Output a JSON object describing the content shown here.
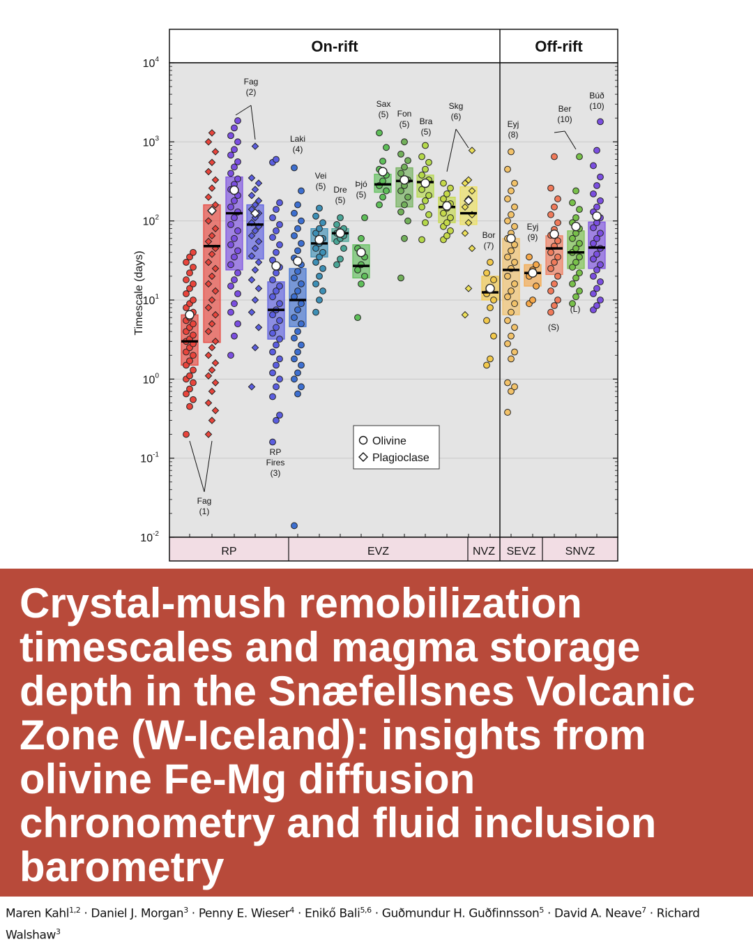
{
  "title": "Crystal-mush remobilization timescales and magma storage depth in the Snæfellsnes Volcanic Zone (W-Iceland): insights from olivine Fe-Mg diffusion chronometry and fluid inclusion barometry",
  "authors": [
    {
      "name": "Maren Kahl",
      "aff": "1,2"
    },
    {
      "name": "Daniel J. Morgan",
      "aff": "3"
    },
    {
      "name": "Penny E. Wieser",
      "aff": "4"
    },
    {
      "name": "Enikő Bali",
      "aff": "5,6"
    },
    {
      "name": "Guðmundur H. Guðfinnsson",
      "aff": "5"
    },
    {
      "name": "David A. Neave",
      "aff": "7"
    },
    {
      "name": "Richard Walshaw",
      "aff": "3"
    }
  ],
  "author_separator": " · ",
  "chart_data": {
    "type": "scatter",
    "yscale": "log",
    "ylabel": "Timescale (days)",
    "ylim": [
      0.01,
      10000
    ],
    "yticks": [
      {
        "value": 0.01,
        "base": "10",
        "exp": "-2"
      },
      {
        "value": 0.1,
        "base": "10",
        "exp": "-1"
      },
      {
        "value": 1,
        "base": "10",
        "exp": "0"
      },
      {
        "value": 10,
        "base": "10",
        "exp": "1"
      },
      {
        "value": 100,
        "base": "10",
        "exp": "2"
      },
      {
        "value": 1000,
        "base": "10",
        "exp": "3"
      },
      {
        "value": 10000,
        "base": "10",
        "exp": "4"
      }
    ],
    "grid": true,
    "header_panels": [
      {
        "label": "On-rift",
        "from": 0,
        "to": 12
      },
      {
        "label": "Off-rift",
        "from": 12,
        "to": 17
      }
    ],
    "zones": [
      {
        "label": "RP",
        "from": 0,
        "to": 5
      },
      {
        "label": "EVZ",
        "from": 5,
        "to": 11
      },
      {
        "label": "NVZ",
        "from": 11,
        "to": 12
      },
      {
        "label": "SEVZ",
        "from": 12,
        "to": 14
      },
      {
        "label": "SNVZ",
        "from": 14,
        "to": 17
      }
    ],
    "legend": {
      "position": "center",
      "items": [
        {
          "marker": "circle",
          "label": "Olivine"
        },
        {
          "marker": "diamond",
          "label": "Plagioclase"
        }
      ]
    },
    "colors": {
      "red": "#e8453c",
      "blue": "#5b5ee0",
      "purple": "#7b4fe0",
      "teal": "#3d8fb5",
      "green": "#5fbf5a",
      "olive": "#72b05a",
      "lime": "#b5d94a",
      "yellow": "#f2c94c",
      "orange": "#f5a84a",
      "salmon": "#f07a5a",
      "plot_bg": "#e4e4e4",
      "zone_bg": "#f2dde4"
    },
    "series": [
      {
        "x": 1,
        "marker": "circle",
        "color": "#e8453c",
        "q1": 1.5,
        "median": 3.0,
        "q3": 6.5,
        "mean": 6.5,
        "values": [
          0.2,
          0.45,
          0.55,
          0.65,
          0.75,
          0.9,
          1.0,
          1.1,
          1.3,
          1.5,
          1.7,
          2.0,
          2.2,
          2.5,
          2.8,
          3.0,
          3.2,
          3.6,
          4.0,
          4.5,
          5.0,
          5.5,
          6.0,
          7.0,
          8.0,
          9.0,
          10,
          12,
          14,
          16,
          18,
          22,
          26,
          30,
          35,
          40
        ]
      },
      {
        "x": 2,
        "marker": "diamond",
        "color": "#e8453c",
        "q1": 2.9,
        "median": 48,
        "q3": 160,
        "mean": 135,
        "values": [
          0.2,
          0.3,
          0.4,
          0.5,
          0.7,
          0.9,
          1.1,
          1.3,
          1.6,
          2.0,
          2.5,
          3.0,
          4.0,
          5.0,
          6.5,
          8,
          10,
          13,
          16,
          20,
          25,
          30,
          38,
          45,
          55,
          65,
          80,
          100,
          130,
          160,
          200,
          260,
          330,
          420,
          550,
          750,
          1000,
          1300
        ]
      },
      {
        "x": 3,
        "marker": "circle",
        "color": "#7b4fe0",
        "q1": 24,
        "median": 125,
        "q3": 360,
        "mean": 245,
        "values": [
          2.0,
          3.5,
          5,
          7,
          9,
          12,
          15,
          18,
          22,
          28,
          35,
          42,
          50,
          60,
          75,
          90,
          110,
          130,
          150,
          180,
          210,
          250,
          290,
          340,
          400,
          480,
          560,
          680,
          800,
          1000,
          1200,
          1500,
          1850
        ]
      },
      {
        "x": 4,
        "marker": "diamond",
        "color": "#5b5ee0",
        "q1": 33,
        "median": 90,
        "q3": 160,
        "mean": 125,
        "values": [
          0.8,
          2.5,
          4.5,
          7,
          10,
          14,
          18,
          24,
          30,
          36,
          45,
          55,
          65,
          75,
          85,
          95,
          110,
          125,
          140,
          160,
          180,
          210,
          250,
          300,
          350,
          880
        ]
      },
      {
        "x": 5,
        "marker": "circle",
        "color": "#5b5ee0",
        "q1": 3.2,
        "median": 7.5,
        "q3": 17,
        "mean": 27,
        "values": [
          0.16,
          0.3,
          0.35,
          0.6,
          0.8,
          1.0,
          1.2,
          1.5,
          1.8,
          2.2,
          2.7,
          3.2,
          3.8,
          4.5,
          5.5,
          6.5,
          7.5,
          9,
          11,
          13,
          15,
          18,
          22,
          26,
          32,
          40,
          50,
          62,
          75,
          90,
          110,
          140,
          170,
          550,
          600
        ]
      },
      {
        "x": 6,
        "marker": "circle",
        "color": "#3d6fd0",
        "q1": 4.6,
        "median": 10,
        "q3": 25,
        "mean": 31,
        "values": [
          0.014,
          0.65,
          0.8,
          1.0,
          1.2,
          1.5,
          1.8,
          2.2,
          2.7,
          3.3,
          4,
          5,
          6,
          7.5,
          9,
          11,
          13,
          16,
          19,
          23,
          28,
          34,
          42,
          52,
          65,
          80,
          100,
          125,
          160,
          240,
          470
        ]
      },
      {
        "x": 7,
        "marker": "circle",
        "color": "#3d8fb5",
        "q1": 35,
        "median": 52,
        "q3": 80,
        "mean": 58,
        "values": [
          7,
          10,
          13,
          16,
          20,
          25,
          30,
          35,
          40,
          45,
          52,
          60,
          70,
          80,
          95,
          115,
          145
        ]
      },
      {
        "x": 8,
        "marker": "circle",
        "color": "#4aa596",
        "q1": 55,
        "median": 70,
        "q3": 80,
        "mean": 70,
        "values": [
          28,
          33,
          45,
          55,
          60,
          65,
          70,
          75,
          80,
          90,
          110
        ]
      },
      {
        "x": 9,
        "marker": "circle",
        "color": "#5fbf5a",
        "q1": 19,
        "median": 27,
        "q3": 50,
        "mean": 40,
        "values": [
          6,
          16,
          20,
          24,
          28,
          35,
          45,
          60,
          110
        ]
      },
      {
        "x": 10,
        "marker": "circle",
        "color": "#5fbf5a",
        "q1": 230,
        "median": 290,
        "q3": 390,
        "mean": 420,
        "values": [
          160,
          200,
          240,
          280,
          320,
          380,
          450,
          570,
          850,
          1300
        ]
      },
      {
        "x": 11,
        "marker": "circle",
        "color": "#72b05a",
        "q1": 150,
        "median": 320,
        "q3": 470,
        "mean": 330,
        "values": [
          19,
          60,
          100,
          130,
          160,
          200,
          240,
          280,
          330,
          400,
          480,
          580,
          700,
          1000
        ]
      },
      {
        "x": 12,
        "marker": "circle",
        "color": "#b5d94a",
        "q1": 200,
        "median": 310,
        "q3": 380,
        "mean": 300,
        "values": [
          58,
          95,
          120,
          150,
          180,
          210,
          250,
          290,
          330,
          380,
          450,
          550,
          650,
          900
        ]
      },
      {
        "x": 13,
        "marker": "circle",
        "color": "#c5d94a",
        "q1": 95,
        "median": 150,
        "q3": 200,
        "mean": 155,
        "values": [
          58,
          65,
          75,
          85,
          95,
          110,
          125,
          145,
          165,
          190,
          220,
          260,
          300
        ]
      },
      {
        "x": 14,
        "marker": "diamond",
        "color": "#ede05a",
        "q1": 90,
        "median": 125,
        "q3": 270,
        "mean": 180,
        "values": [
          6.5,
          14,
          45,
          70,
          95,
          120,
          150,
          190,
          240,
          300,
          330,
          780
        ]
      },
      {
        "x": 15,
        "marker": "circle",
        "color": "#f2c94c",
        "q1": 10,
        "median": 12.5,
        "q3": 20,
        "mean": 14,
        "values": [
          1.5,
          1.8,
          3.5,
          5.5,
          8,
          10,
          12,
          14,
          18,
          22,
          30
        ]
      },
      {
        "x": 16,
        "marker": "circle",
        "color": "#f2c26a",
        "q1": 6.5,
        "median": 24,
        "q3": 60,
        "mean": 60,
        "values": [
          0.38,
          0.7,
          0.8,
          0.9,
          1.8,
          2.2,
          2.8,
          3.5,
          4.5,
          5.5,
          7,
          9,
          11,
          13,
          16,
          20,
          25,
          30,
          35,
          42,
          50,
          60,
          70,
          85,
          100,
          120,
          150,
          190,
          240,
          300,
          450,
          750
        ]
      },
      {
        "x": 17,
        "marker": "circle",
        "color": "#f5a84a",
        "q1": 15,
        "median": 22,
        "q3": 28,
        "mean": 22,
        "values": [
          9,
          10,
          15,
          20,
          24,
          28,
          35
        ]
      },
      {
        "x": 18,
        "marker": "circle",
        "color": "#f07a5a",
        "q1": 21,
        "median": 45,
        "q3": 65,
        "mean": 68,
        "values": [
          7,
          8.5,
          10,
          13,
          16,
          20,
          25,
          30,
          35,
          40,
          48,
          56,
          66,
          78,
          95,
          120,
          150,
          190,
          260,
          650
        ]
      },
      {
        "x": 19,
        "marker": "circle",
        "color": "#78c04a",
        "q1": 25,
        "median": 40,
        "q3": 75,
        "mean": 85,
        "values": [
          9,
          11,
          13,
          16,
          19,
          22,
          26,
          30,
          35,
          40,
          45,
          52,
          60,
          70,
          80,
          95,
          110,
          140,
          170,
          240,
          650
        ]
      },
      {
        "x": 20,
        "marker": "circle",
        "color": "#7b4fe0",
        "q1": 25,
        "median": 46,
        "q3": 97,
        "mean": 115,
        "values": [
          7.5,
          8.5,
          10,
          12,
          14,
          17,
          20,
          24,
          28,
          33,
          38,
          45,
          52,
          60,
          70,
          82,
          95,
          110,
          130,
          150,
          180,
          220,
          280,
          360,
          500,
          780,
          1800
        ]
      }
    ],
    "annotations": [
      {
        "lines": [
          "Fag",
          "(1)"
        ]
      },
      {
        "lines": [
          "Fag",
          "(2)"
        ]
      },
      {
        "lines": [
          "RP",
          "Fires",
          "(3)"
        ]
      },
      {
        "lines": [
          "Laki",
          "(4)"
        ]
      },
      {
        "lines": [
          "Vei",
          "(5)"
        ]
      },
      {
        "lines": [
          "Dre",
          "(5)"
        ]
      },
      {
        "lines": [
          "Þjó",
          "(5)"
        ]
      },
      {
        "lines": [
          "Sax",
          "(5)"
        ]
      },
      {
        "lines": [
          "Fon",
          "(5)"
        ]
      },
      {
        "lines": [
          "Bra",
          "(5)"
        ]
      },
      {
        "lines": [
          "Skg",
          "(6)"
        ]
      },
      {
        "lines": [
          "Bor",
          "(7)"
        ]
      },
      {
        "lines": [
          "Eyj",
          "(8)"
        ]
      },
      {
        "lines": [
          "Eyj",
          "(9)"
        ]
      },
      {
        "lines": [
          "Ber",
          "(10)"
        ]
      },
      {
        "lines": [
          "Búð",
          "(10)"
        ]
      },
      {
        "lines": [
          "(S)"
        ]
      },
      {
        "lines": [
          "(L)"
        ]
      }
    ]
  }
}
